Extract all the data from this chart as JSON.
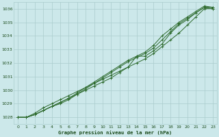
{
  "title": "Graphe pression niveau de la mer (hPa)",
  "bg_color": "#cce8ea",
  "grid_color": "#aacccc",
  "line_color": "#2d6a2d",
  "text_color": "#1a4a1a",
  "xlim": [
    -0.5,
    23.5
  ],
  "ylim": [
    1027.5,
    1036.5
  ],
  "yticks": [
    1028,
    1029,
    1030,
    1031,
    1032,
    1033,
    1034,
    1035,
    1036
  ],
  "xticks": [
    0,
    1,
    2,
    3,
    4,
    5,
    6,
    7,
    8,
    9,
    10,
    11,
    12,
    13,
    14,
    15,
    16,
    17,
    18,
    19,
    20,
    21,
    22,
    23
  ],
  "series": [
    [
      1028.0,
      1028.0,
      1028.3,
      1028.7,
      1029.0,
      1029.3,
      1029.6,
      1029.9,
      1030.2,
      1030.5,
      1030.8,
      1031.1,
      1031.4,
      1031.7,
      1032.0,
      1032.3,
      1032.7,
      1033.2,
      1033.7,
      1034.2,
      1034.8,
      1035.4,
      1036.0,
      1036.0
    ],
    [
      1028.0,
      1028.0,
      1028.2,
      1028.5,
      1028.8,
      1029.1,
      1029.4,
      1029.7,
      1030.0,
      1030.3,
      1030.6,
      1030.9,
      1031.3,
      1031.7,
      1032.5,
      1032.5,
      1032.9,
      1033.4,
      1034.2,
      1034.8,
      1035.2,
      1035.7,
      1036.1,
      1036.1
    ],
    [
      1028.0,
      1028.0,
      1028.2,
      1028.5,
      1028.8,
      1029.1,
      1029.4,
      1029.8,
      1030.2,
      1030.6,
      1031.0,
      1031.4,
      1031.8,
      1032.2,
      1032.5,
      1032.8,
      1033.3,
      1034.0,
      1034.5,
      1035.0,
      1035.4,
      1035.8,
      1036.2,
      1036.1
    ],
    [
      1028.0,
      1028.0,
      1028.2,
      1028.5,
      1028.8,
      1029.0,
      1029.3,
      1029.7,
      1030.1,
      1030.5,
      1030.9,
      1031.3,
      1031.7,
      1032.1,
      1032.4,
      1032.7,
      1033.1,
      1033.7,
      1034.3,
      1034.9,
      1035.3,
      1035.7,
      1036.1,
      1036.0
    ]
  ]
}
